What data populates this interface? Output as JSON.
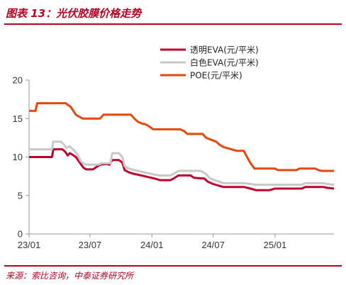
{
  "figure": {
    "title": "图表 13：光伏胶膜价格走势",
    "source": "来源：索比咨询，中泰证券研究所"
  },
  "colors": {
    "accent": "#b8001f",
    "axis": "#999999"
  },
  "chart_data": {
    "type": "line",
    "xlabel": "",
    "ylabel": "",
    "ylim": [
      0,
      20
    ],
    "yticks": [
      0,
      5,
      10,
      15,
      20
    ],
    "xlim": [
      "2023-01-01",
      "2025-06-25"
    ],
    "xticks": [
      {
        "date": "2023-01-01",
        "label": "23/01"
      },
      {
        "date": "2023-07-01",
        "label": "23/07"
      },
      {
        "date": "2024-01-01",
        "label": "24/01"
      },
      {
        "date": "2024-07-01",
        "label": "24/07"
      },
      {
        "date": "2025-01-01",
        "label": "25/01"
      }
    ],
    "grid": false,
    "legend_position": "top-right",
    "series": [
      {
        "name": "透明EVA(元/平米)",
        "color": "#c0002a",
        "points": [
          [
            "2023-01-01",
            10.0
          ],
          [
            "2023-03-10",
            10.0
          ],
          [
            "2023-03-14",
            11.0
          ],
          [
            "2023-04-10",
            11.0
          ],
          [
            "2023-04-18",
            10.7
          ],
          [
            "2023-04-26",
            10.2
          ],
          [
            "2023-05-02",
            10.5
          ],
          [
            "2023-05-10",
            10.3
          ],
          [
            "2023-05-20",
            10.0
          ],
          [
            "2023-05-28",
            9.5
          ],
          [
            "2023-06-05",
            9.0
          ],
          [
            "2023-06-12",
            8.6
          ],
          [
            "2023-06-20",
            8.4
          ],
          [
            "2023-07-10",
            8.4
          ],
          [
            "2023-07-20",
            8.7
          ],
          [
            "2023-07-31",
            9.0
          ],
          [
            "2023-08-20",
            9.1
          ],
          [
            "2023-08-28",
            9.0
          ],
          [
            "2023-09-05",
            9.6
          ],
          [
            "2023-09-25",
            9.6
          ],
          [
            "2023-10-05",
            9.3
          ],
          [
            "2023-10-12",
            8.3
          ],
          [
            "2023-10-25",
            8.0
          ],
          [
            "2023-11-10",
            7.8
          ],
          [
            "2023-12-01",
            7.6
          ],
          [
            "2023-12-20",
            7.4
          ],
          [
            "2024-01-10",
            7.2
          ],
          [
            "2024-01-25",
            7.0
          ],
          [
            "2024-02-25",
            7.0
          ],
          [
            "2024-03-05",
            7.2
          ],
          [
            "2024-03-20",
            7.6
          ],
          [
            "2024-04-25",
            7.6
          ],
          [
            "2024-05-05",
            7.3
          ],
          [
            "2024-06-05",
            7.2
          ],
          [
            "2024-06-15",
            6.8
          ],
          [
            "2024-07-01",
            6.5
          ],
          [
            "2024-07-15",
            6.3
          ],
          [
            "2024-08-01",
            6.1
          ],
          [
            "2024-10-01",
            6.1
          ],
          [
            "2024-10-20",
            5.9
          ],
          [
            "2024-11-05",
            5.7
          ],
          [
            "2024-12-15",
            5.7
          ],
          [
            "2025-01-01",
            5.9
          ],
          [
            "2025-03-20",
            5.9
          ],
          [
            "2025-04-01",
            6.1
          ],
          [
            "2025-05-25",
            6.1
          ],
          [
            "2025-06-05",
            6.0
          ],
          [
            "2025-06-25",
            5.9
          ]
        ]
      },
      {
        "name": "白色EVA(元/平米)",
        "color": "#c8c8c8",
        "points": [
          [
            "2023-01-01",
            11.0
          ],
          [
            "2023-03-10",
            11.0
          ],
          [
            "2023-03-14",
            12.0
          ],
          [
            "2023-04-05",
            12.0
          ],
          [
            "2023-04-15",
            11.6
          ],
          [
            "2023-04-22",
            11.2
          ],
          [
            "2023-05-01",
            11.4
          ],
          [
            "2023-05-12",
            11.0
          ],
          [
            "2023-05-25",
            10.3
          ],
          [
            "2023-06-03",
            9.5
          ],
          [
            "2023-06-10",
            9.2
          ],
          [
            "2023-06-20",
            9.0
          ],
          [
            "2023-07-25",
            9.0
          ],
          [
            "2023-08-05",
            9.2
          ],
          [
            "2023-08-31",
            9.2
          ],
          [
            "2023-09-05",
            10.5
          ],
          [
            "2023-09-25",
            10.5
          ],
          [
            "2023-10-05",
            10.0
          ],
          [
            "2023-10-12",
            8.8
          ],
          [
            "2023-10-25",
            8.5
          ],
          [
            "2023-11-10",
            8.3
          ],
          [
            "2023-12-01",
            8.1
          ],
          [
            "2023-12-20",
            7.9
          ],
          [
            "2024-01-10",
            7.7
          ],
          [
            "2024-01-25",
            7.6
          ],
          [
            "2024-02-25",
            7.6
          ],
          [
            "2024-03-05",
            7.8
          ],
          [
            "2024-03-20",
            8.2
          ],
          [
            "2024-05-25",
            8.2
          ],
          [
            "2024-06-10",
            7.8
          ],
          [
            "2024-06-20",
            7.3
          ],
          [
            "2024-07-05",
            7.0
          ],
          [
            "2024-07-20",
            6.8
          ],
          [
            "2024-08-01",
            6.6
          ],
          [
            "2024-10-01",
            6.6
          ],
          [
            "2024-10-20",
            6.5
          ],
          [
            "2024-11-05",
            6.4
          ],
          [
            "2024-12-20",
            6.4
          ],
          [
            "2025-01-01",
            6.4
          ],
          [
            "2025-03-20",
            6.4
          ],
          [
            "2025-04-01",
            6.6
          ],
          [
            "2025-05-25",
            6.6
          ],
          [
            "2025-06-05",
            6.5
          ],
          [
            "2025-06-25",
            6.4
          ]
        ]
      },
      {
        "name": "POE(元/平米)",
        "color": "#e8470c",
        "points": [
          [
            "2023-01-01",
            16.0
          ],
          [
            "2023-01-20",
            16.0
          ],
          [
            "2023-01-25",
            17.0
          ],
          [
            "2023-04-20",
            17.0
          ],
          [
            "2023-05-05",
            16.5
          ],
          [
            "2023-05-20",
            15.5
          ],
          [
            "2023-06-01",
            15.2
          ],
          [
            "2023-06-10",
            15.0
          ],
          [
            "2023-07-31",
            15.0
          ],
          [
            "2023-08-10",
            15.5
          ],
          [
            "2023-10-31",
            15.5
          ],
          [
            "2023-11-10",
            15.0
          ],
          [
            "2023-11-20",
            14.6
          ],
          [
            "2023-12-05",
            14.3
          ],
          [
            "2023-12-10",
            14.3
          ],
          [
            "2023-12-20",
            14.1
          ],
          [
            "2024-01-05",
            13.6
          ],
          [
            "2024-03-25",
            13.6
          ],
          [
            "2024-04-05",
            13.4
          ],
          [
            "2024-04-15",
            13.0
          ],
          [
            "2024-05-31",
            13.0
          ],
          [
            "2024-06-10",
            12.5
          ],
          [
            "2024-07-10",
            12.0
          ],
          [
            "2024-07-20",
            11.6
          ],
          [
            "2024-08-01",
            11.3
          ],
          [
            "2024-09-10",
            10.8
          ],
          [
            "2024-09-30",
            10.8
          ],
          [
            "2024-10-10",
            10.0
          ],
          [
            "2024-10-20",
            9.2
          ],
          [
            "2024-11-01",
            8.5
          ],
          [
            "2024-12-31",
            8.5
          ],
          [
            "2025-01-10",
            8.3
          ],
          [
            "2025-03-05",
            8.3
          ],
          [
            "2025-03-15",
            8.5
          ],
          [
            "2025-04-30",
            8.5
          ],
          [
            "2025-05-10",
            8.3
          ],
          [
            "2025-05-20",
            8.2
          ],
          [
            "2025-06-25",
            8.2
          ]
        ]
      }
    ]
  }
}
